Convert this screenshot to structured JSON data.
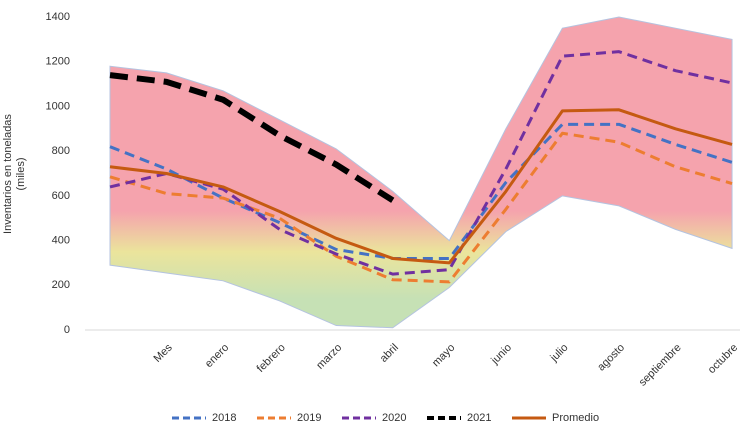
{
  "chart_data": {
    "type": "line",
    "y_label": [
      "Inventarios en toneladas",
      "(miles)"
    ],
    "categories": [
      null,
      "Mes",
      "enero",
      "febrero",
      "marzo",
      "abril",
      "mayo",
      "junio",
      "julio",
      "agosto",
      "septiembre",
      "octubre"
    ],
    "ylim": [
      0,
      1400
    ],
    "yticks": [
      0,
      200,
      400,
      600,
      800,
      1000,
      1200,
      1400
    ],
    "band": {
      "upper": [
        1180,
        1150,
        1070,
        940,
        810,
        620,
        400,
        900,
        1350,
        1400,
        1350,
        1300
      ],
      "lower": [
        290,
        255,
        220,
        130,
        20,
        10,
        190,
        440,
        600,
        555,
        450,
        365
      ]
    },
    "series": [
      {
        "name": "2018",
        "color": "#4472c4",
        "dash": "10 6",
        "width": 3,
        "values": [
          820,
          720,
          590,
          480,
          360,
          320,
          320,
          660,
          920,
          920,
          830,
          750
        ]
      },
      {
        "name": "2019",
        "color": "#ed7d31",
        "dash": "10 6",
        "width": 3,
        "values": [
          685,
          610,
          590,
          500,
          330,
          225,
          215,
          540,
          880,
          840,
          730,
          655
        ]
      },
      {
        "name": "2020",
        "color": "#7030a0",
        "dash": "10 6",
        "width": 3,
        "values": [
          640,
          700,
          630,
          450,
          340,
          250,
          270,
          720,
          1225,
          1245,
          1160,
          1105
        ]
      },
      {
        "name": "2021",
        "color": "#000000",
        "dash": "18 9",
        "width": 6,
        "values": [
          1140,
          1110,
          1030,
          870,
          740,
          580,
          null,
          null,
          null,
          null,
          null,
          null
        ]
      },
      {
        "name": "Promedio",
        "color": "#c55a11",
        "dash": "",
        "width": 3,
        "values": [
          730,
          700,
          640,
          530,
          410,
          320,
          300,
          620,
          980,
          985,
          900,
          830
        ]
      }
    ]
  }
}
